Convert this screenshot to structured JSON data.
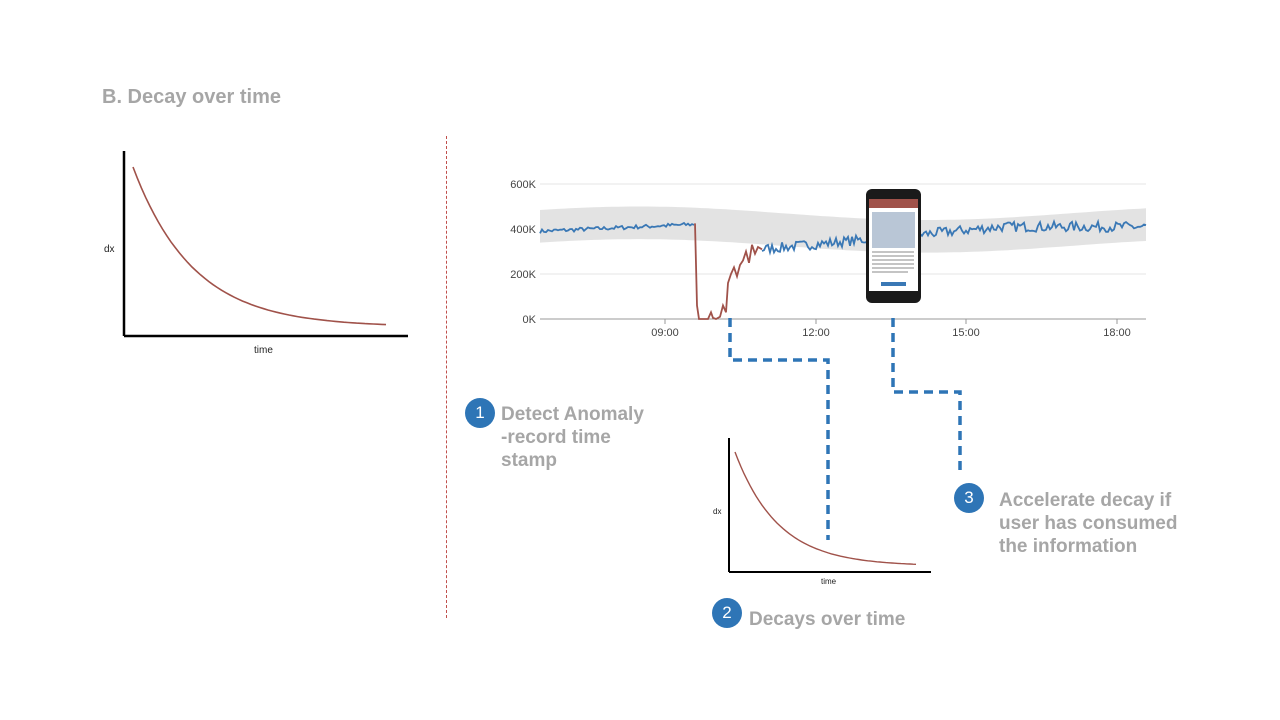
{
  "slide": {
    "title": "B.  Decay over time"
  },
  "left_chart": {
    "ylabel": "dx",
    "xlabel": "time",
    "curve_color": "#a0524a"
  },
  "main_chart": {
    "y_ticks": [
      "600K",
      "400K",
      "200K",
      "0K"
    ],
    "x_ticks": [
      "09:00",
      "12:00",
      "15:00",
      "18:00"
    ],
    "normal_color": "#3a78b5",
    "anomaly_color": "#a0524a",
    "band_color": "#e3e3e3"
  },
  "inset_chart": {
    "ylabel": "dx",
    "xlabel": "time"
  },
  "callouts": [
    {
      "number": "1",
      "lines": [
        "Detect Anomaly",
        "-record time",
        "stamp"
      ]
    },
    {
      "number": "2",
      "lines": [
        "Decays over time"
      ]
    },
    {
      "number": "3",
      "lines": [
        "Accelerate decay if",
        "user has consumed",
        "the information"
      ]
    }
  ],
  "connector_color": "#2e75b6",
  "chart_data": [
    {
      "type": "line",
      "title": "",
      "xlabel": "time",
      "ylabel": "dx",
      "series": [
        {
          "values": [
            1.0,
            0.61,
            0.37,
            0.22,
            0.14,
            0.08,
            0.05,
            0.03,
            0.02
          ]
        }
      ],
      "grid": false
    },
    {
      "type": "line",
      "title": "",
      "xlabel": "",
      "ylabel": "",
      "x": [
        "07:00",
        "08:00",
        "09:00",
        "09:30",
        "09:45",
        "10:00",
        "10:15",
        "10:30",
        "10:45",
        "11:00",
        "11:30",
        "12:00",
        "13:00",
        "14:00",
        "15:00",
        "16:00",
        "17:00",
        "18:00",
        "18:30"
      ],
      "series": [
        {
          "values": [
            400000,
            385000,
            405000,
            425000,
            20000,
            10000,
            80000,
            200000,
            260000,
            300000,
            350000,
            370000,
            400000,
            405000,
            410000,
            420000,
            410000,
            400000,
            380000
          ]
        }
      ],
      "ylim": [
        0,
        600000
      ],
      "y_ticks": [
        "0K",
        "200K",
        "400K",
        "600K"
      ],
      "x_ticks": [
        "09:00",
        "12:00",
        "15:00",
        "18:00"
      ],
      "grid": true
    },
    {
      "type": "line",
      "title": "",
      "xlabel": "time",
      "ylabel": "dx",
      "series": [
        {
          "values": [
            1.0,
            0.61,
            0.37,
            0.22,
            0.14,
            0.08,
            0.05,
            0.03,
            0.02
          ]
        }
      ],
      "grid": false
    }
  ]
}
